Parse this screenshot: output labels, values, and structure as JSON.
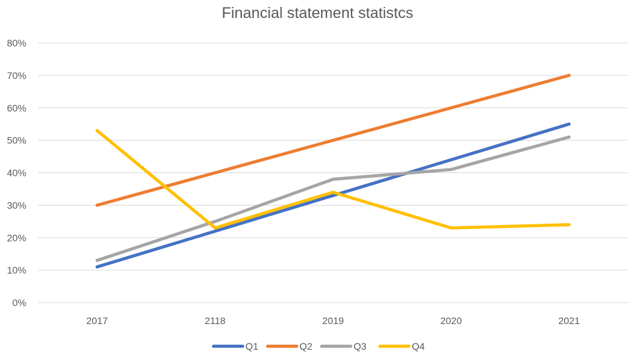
{
  "chart_data": {
    "type": "line",
    "title": "Financial statement statistcs",
    "xlabel": "",
    "ylabel": "",
    "categories": [
      "2017",
      "2118",
      "2019",
      "2020",
      "2021"
    ],
    "ylim": [
      0,
      80
    ],
    "yticks": [
      0,
      10,
      20,
      30,
      40,
      50,
      60,
      70,
      80
    ],
    "ytick_labels": [
      "0%",
      "10%",
      "20%",
      "30%",
      "40%",
      "50%",
      "60%",
      "70%",
      "80%"
    ],
    "grid": true,
    "legend": "bottom",
    "series": [
      {
        "name": "Q1",
        "color": "#4472C4",
        "values": [
          11,
          22,
          33,
          44,
          55
        ]
      },
      {
        "name": "Q2",
        "color": "#ED7D31",
        "values": [
          30,
          40,
          50,
          60,
          70
        ]
      },
      {
        "name": "Q3",
        "color": "#A5A5A5",
        "values": [
          13,
          25,
          38,
          41,
          51
        ]
      },
      {
        "name": "Q4",
        "color": "#FFC000",
        "values": [
          53,
          23,
          34,
          23,
          24
        ]
      }
    ]
  }
}
